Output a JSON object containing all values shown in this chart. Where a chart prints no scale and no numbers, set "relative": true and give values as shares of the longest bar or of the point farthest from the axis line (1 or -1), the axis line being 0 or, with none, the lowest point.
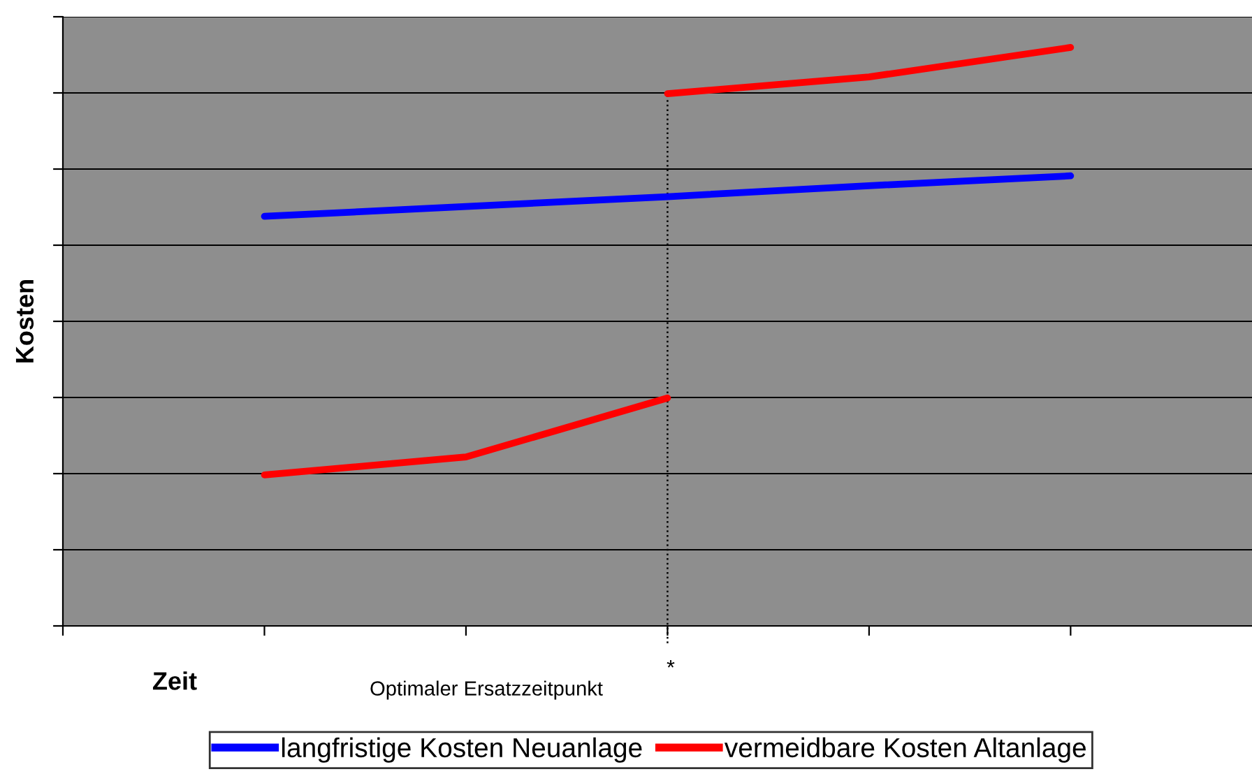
{
  "chart_data": {
    "type": "line",
    "relative": true,
    "xlabel": "Zeit",
    "ylabel": "Kosten",
    "categories": [
      null,
      null,
      null,
      null,
      null,
      null
    ],
    "series": [
      {
        "name": "langfristige Kosten Neuanlage",
        "color": "#0000ff",
        "values": [
          null,
          0.708,
          0.725,
          0.742,
          0.761,
          0.778
        ]
      },
      {
        "name": "vermeidbare Kosten Altanlage",
        "color": "#ff0000",
        "values": [
          null,
          0.261,
          0.292,
          0.394,
          null,
          null
        ]
      },
      {
        "color": "#ff0000",
        "values": [
          null,
          null,
          null,
          0.92,
          0.949,
          1.0
        ]
      }
    ],
    "annotations": [
      "Optimaler Ersatzzeitpunkt",
      "*"
    ],
    "grid": "y",
    "legend": "bottom",
    "marker": "none",
    "line_style": "solid"
  }
}
